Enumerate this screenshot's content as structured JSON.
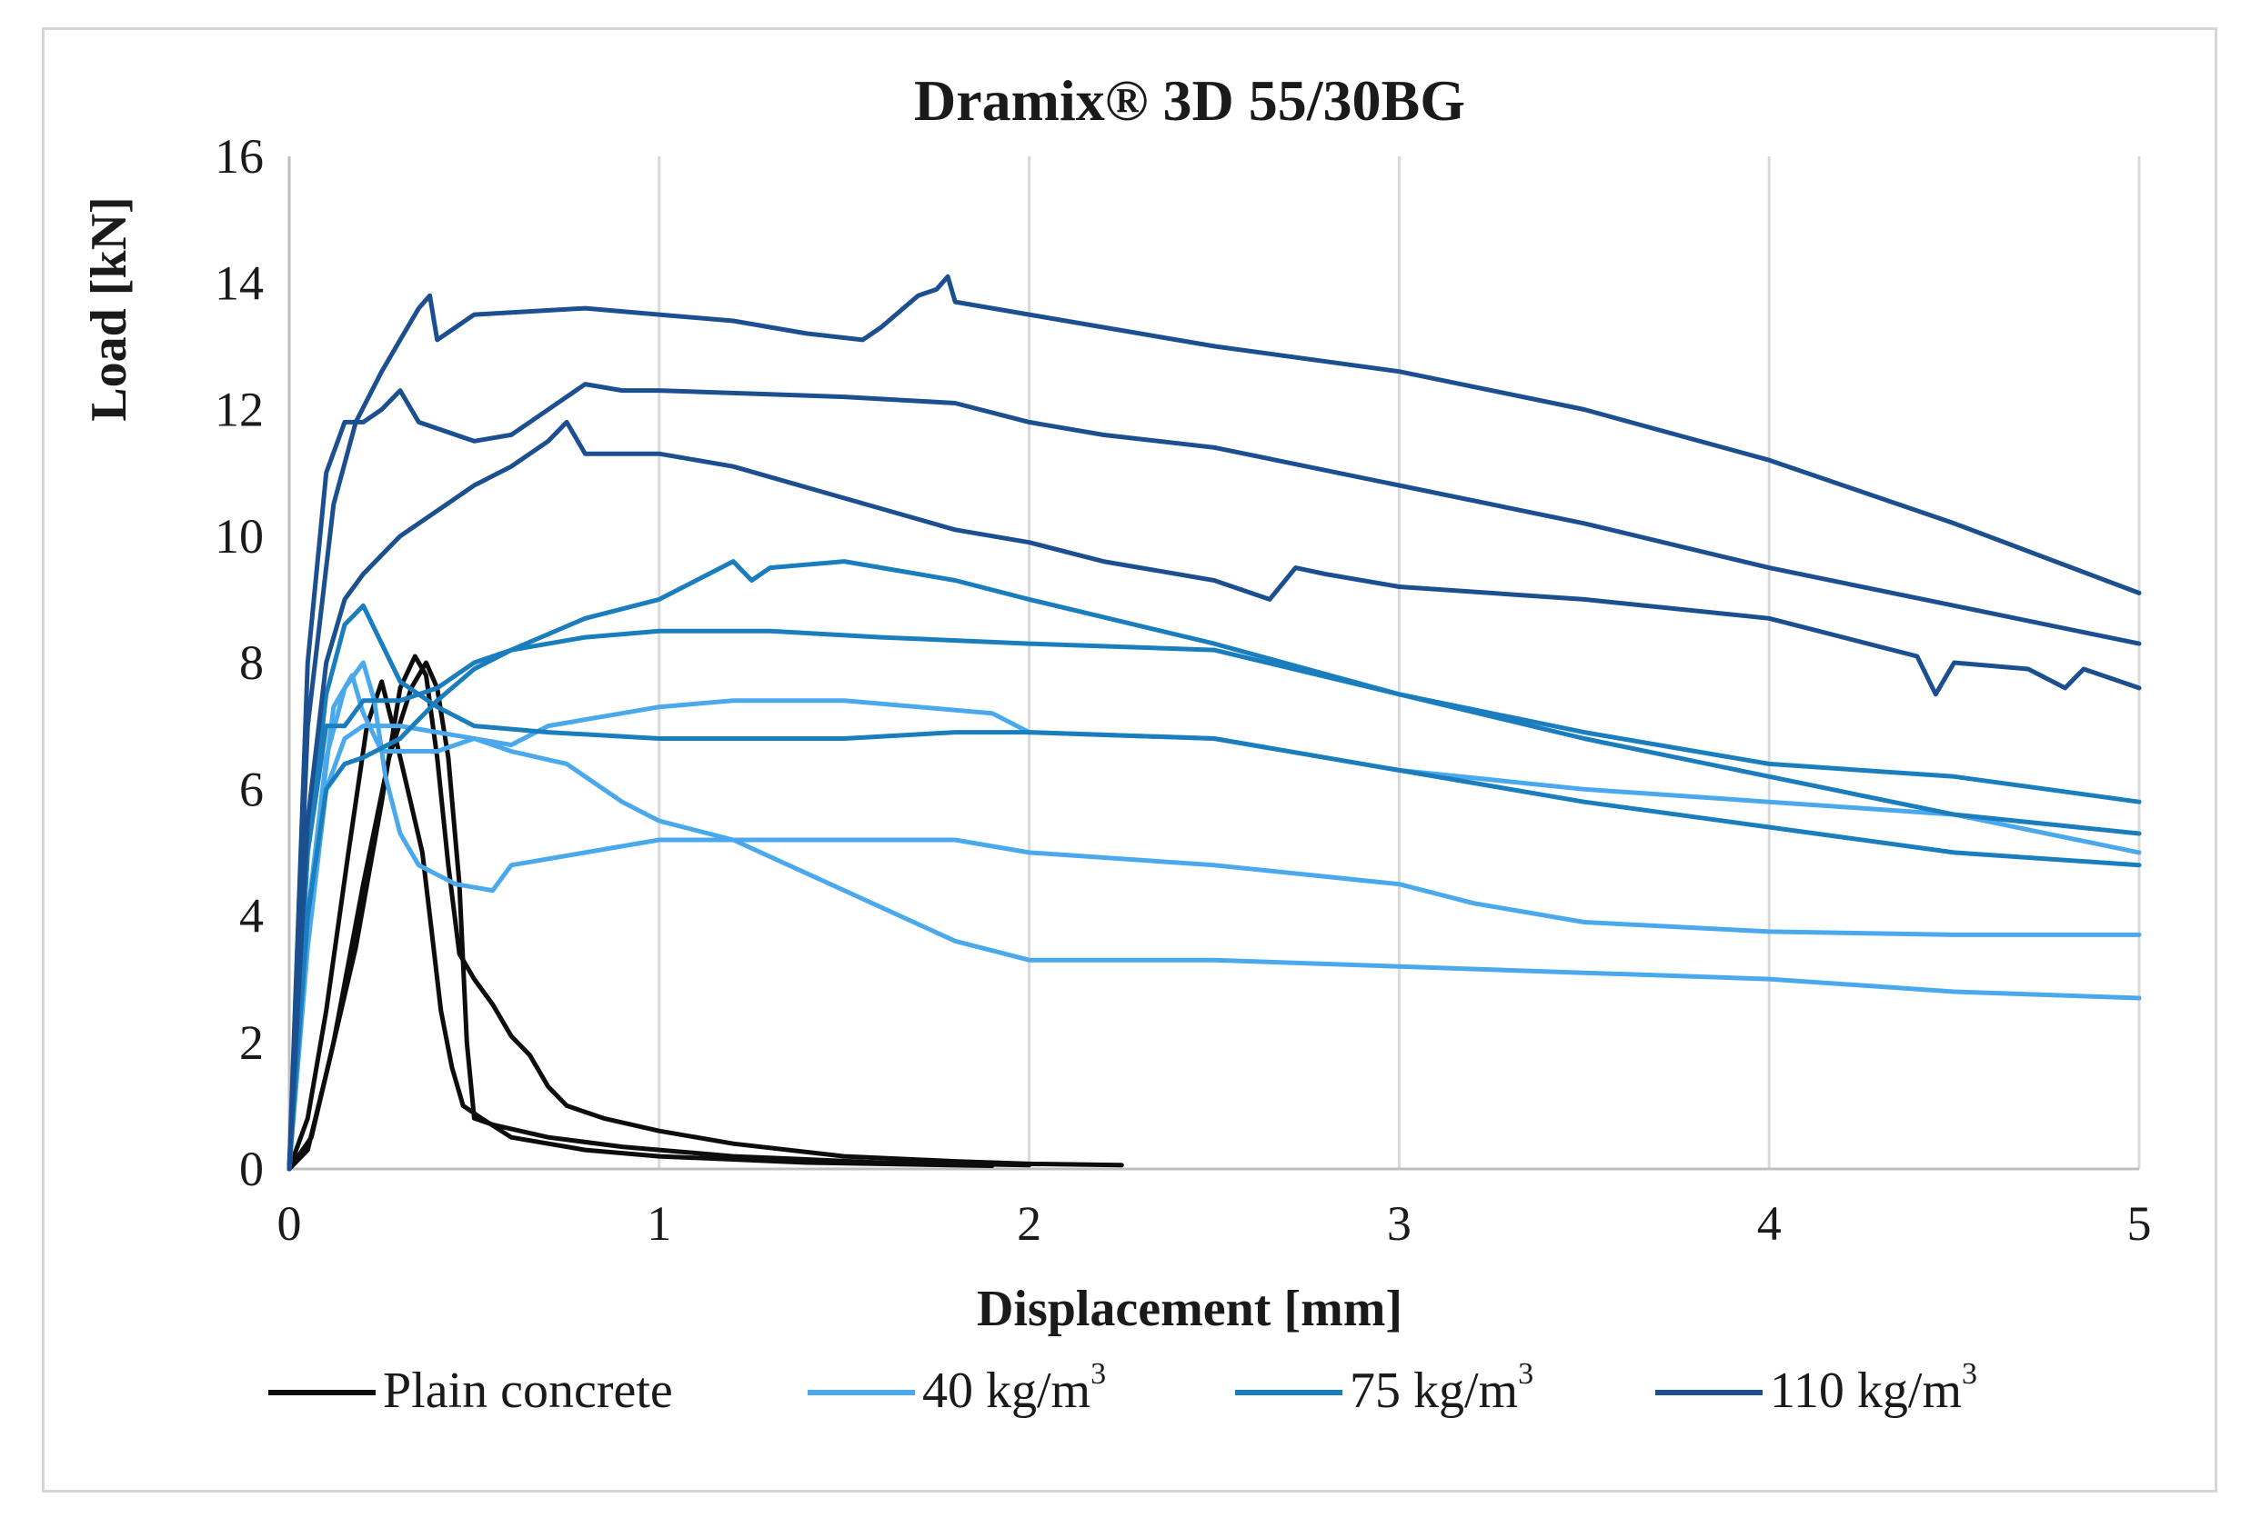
{
  "chart_data": {
    "type": "line",
    "title": "Dramix® 3D 55/30BG",
    "xlabel": "Displacement [mm]",
    "ylabel": "Load [kN]",
    "xlim": [
      0,
      5
    ],
    "ylim": [
      0,
      16
    ],
    "xticks": [
      "0",
      "1",
      "2",
      "3",
      "4",
      "5"
    ],
    "yticks": [
      "0",
      "2",
      "4",
      "6",
      "8",
      "10",
      "12",
      "14",
      "16"
    ],
    "grid": "vertical",
    "legend_position": "bottom",
    "legend": [
      {
        "label": "Plain concrete",
        "unit_sup": "",
        "color": "#0d0d0d"
      },
      {
        "label": "40 kg/m",
        "unit_sup": "3",
        "color": "#4aa8ec"
      },
      {
        "label": "75 kg/m",
        "unit_sup": "3",
        "color": "#1a7dbd"
      },
      {
        "label": "110 kg/m",
        "unit_sup": "3",
        "color": "#1b4f8f"
      }
    ],
    "series": [
      {
        "name": "Plain concrete",
        "color": "#0d0d0d",
        "points": [
          [
            0,
            0
          ],
          [
            0.05,
            0.3
          ],
          [
            0.1,
            1.5
          ],
          [
            0.18,
            3.5
          ],
          [
            0.25,
            5.8
          ],
          [
            0.3,
            7.6
          ],
          [
            0.34,
            8.1
          ],
          [
            0.37,
            7.8
          ],
          [
            0.4,
            6.5
          ],
          [
            0.43,
            4.8
          ],
          [
            0.46,
            3.4
          ],
          [
            0.5,
            3.0
          ],
          [
            0.55,
            2.6
          ],
          [
            0.6,
            2.1
          ],
          [
            0.65,
            1.8
          ],
          [
            0.7,
            1.3
          ],
          [
            0.75,
            1.0
          ],
          [
            0.85,
            0.8
          ],
          [
            1.0,
            0.6
          ],
          [
            1.2,
            0.4
          ],
          [
            1.5,
            0.2
          ],
          [
            1.8,
            0.12
          ],
          [
            2.0,
            0.08
          ],
          [
            2.25,
            0.06
          ]
        ]
      },
      {
        "name": "Plain concrete",
        "color": "#0d0d0d",
        "points": [
          [
            0,
            0
          ],
          [
            0.05,
            0.8
          ],
          [
            0.1,
            2.5
          ],
          [
            0.16,
            5.0
          ],
          [
            0.21,
            7.0
          ],
          [
            0.25,
            7.7
          ],
          [
            0.28,
            7.0
          ],
          [
            0.32,
            6.0
          ],
          [
            0.36,
            5.0
          ],
          [
            0.39,
            3.5
          ],
          [
            0.41,
            2.5
          ],
          [
            0.44,
            1.6
          ],
          [
            0.47,
            1.0
          ],
          [
            0.52,
            0.8
          ],
          [
            0.6,
            0.5
          ],
          [
            0.8,
            0.3
          ],
          [
            1.0,
            0.2
          ],
          [
            1.4,
            0.1
          ],
          [
            1.9,
            0.05
          ]
        ]
      },
      {
        "name": "Plain concrete",
        "color": "#0d0d0d",
        "points": [
          [
            0,
            0
          ],
          [
            0.06,
            0.5
          ],
          [
            0.12,
            2.0
          ],
          [
            0.2,
            4.5
          ],
          [
            0.27,
            6.5
          ],
          [
            0.33,
            7.6
          ],
          [
            0.37,
            8.0
          ],
          [
            0.4,
            7.6
          ],
          [
            0.43,
            6.5
          ],
          [
            0.46,
            4.5
          ],
          [
            0.48,
            2.0
          ],
          [
            0.5,
            0.8
          ],
          [
            0.55,
            0.7
          ],
          [
            0.7,
            0.5
          ],
          [
            0.9,
            0.35
          ],
          [
            1.2,
            0.2
          ],
          [
            1.6,
            0.1
          ],
          [
            2.0,
            0.06
          ]
        ]
      },
      {
        "name": "40 kg/m3",
        "color": "#4aa8ec",
        "points": [
          [
            0,
            0
          ],
          [
            0.05,
            4.0
          ],
          [
            0.1,
            6.5
          ],
          [
            0.15,
            7.6
          ],
          [
            0.2,
            8.0
          ],
          [
            0.23,
            7.4
          ],
          [
            0.26,
            6.2
          ],
          [
            0.3,
            5.3
          ],
          [
            0.35,
            4.8
          ],
          [
            0.45,
            4.5
          ],
          [
            0.55,
            4.4
          ],
          [
            0.6,
            4.8
          ],
          [
            0.8,
            5.0
          ],
          [
            1.0,
            5.2
          ],
          [
            1.3,
            5.2
          ],
          [
            1.8,
            5.2
          ],
          [
            2.0,
            5.0
          ],
          [
            2.5,
            4.8
          ],
          [
            3.0,
            4.5
          ],
          [
            3.2,
            4.2
          ],
          [
            3.5,
            3.9
          ],
          [
            4.0,
            3.75
          ],
          [
            4.5,
            3.7
          ],
          [
            5.0,
            3.7
          ]
        ]
      },
      {
        "name": "40 kg/m3",
        "color": "#4aa8ec",
        "points": [
          [
            0,
            0
          ],
          [
            0.05,
            3.5
          ],
          [
            0.1,
            6.0
          ],
          [
            0.15,
            6.8
          ],
          [
            0.2,
            7.0
          ],
          [
            0.3,
            7.0
          ],
          [
            0.4,
            6.9
          ],
          [
            0.5,
            6.8
          ],
          [
            0.6,
            6.7
          ],
          [
            0.7,
            7.0
          ],
          [
            0.9,
            7.2
          ],
          [
            1.0,
            7.3
          ],
          [
            1.2,
            7.4
          ],
          [
            1.5,
            7.4
          ],
          [
            1.9,
            7.2
          ],
          [
            2.0,
            6.9
          ],
          [
            2.5,
            6.8
          ],
          [
            3.0,
            6.3
          ],
          [
            3.5,
            6.0
          ],
          [
            4.0,
            5.8
          ],
          [
            4.5,
            5.6
          ],
          [
            5.0,
            5.0
          ]
        ]
      },
      {
        "name": "40 kg/m3",
        "color": "#4aa8ec",
        "points": [
          [
            0,
            0
          ],
          [
            0.05,
            4.0
          ],
          [
            0.12,
            7.3
          ],
          [
            0.17,
            7.8
          ],
          [
            0.2,
            7.2
          ],
          [
            0.25,
            6.6
          ],
          [
            0.3,
            6.6
          ],
          [
            0.4,
            6.6
          ],
          [
            0.5,
            6.8
          ],
          [
            0.6,
            6.6
          ],
          [
            0.75,
            6.4
          ],
          [
            0.9,
            5.8
          ],
          [
            1.0,
            5.5
          ],
          [
            1.2,
            5.2
          ],
          [
            1.5,
            4.4
          ],
          [
            1.8,
            3.6
          ],
          [
            2.0,
            3.3
          ],
          [
            2.5,
            3.3
          ],
          [
            3.0,
            3.2
          ],
          [
            3.5,
            3.1
          ],
          [
            4.0,
            3.0
          ],
          [
            4.5,
            2.8
          ],
          [
            5.0,
            2.7
          ]
        ]
      },
      {
        "name": "75 kg/m3",
        "color": "#1a7dbd",
        "points": [
          [
            0,
            0
          ],
          [
            0.05,
            5.0
          ],
          [
            0.1,
            7.5
          ],
          [
            0.15,
            8.6
          ],
          [
            0.2,
            8.9
          ],
          [
            0.25,
            8.3
          ],
          [
            0.3,
            7.7
          ],
          [
            0.4,
            7.3
          ],
          [
            0.5,
            7.0
          ],
          [
            0.7,
            6.9
          ],
          [
            1.0,
            6.8
          ],
          [
            1.5,
            6.8
          ],
          [
            1.8,
            6.9
          ],
          [
            2.0,
            6.9
          ],
          [
            2.5,
            6.8
          ],
          [
            3.0,
            6.3
          ],
          [
            3.5,
            5.8
          ],
          [
            4.0,
            5.4
          ],
          [
            4.5,
            5.0
          ],
          [
            5.0,
            4.8
          ]
        ]
      },
      {
        "name": "75 kg/m3",
        "color": "#1a7dbd",
        "points": [
          [
            0,
            0
          ],
          [
            0.05,
            4.0
          ],
          [
            0.1,
            6.0
          ],
          [
            0.15,
            6.4
          ],
          [
            0.2,
            6.5
          ],
          [
            0.3,
            6.8
          ],
          [
            0.4,
            7.4
          ],
          [
            0.5,
            7.9
          ],
          [
            0.6,
            8.2
          ],
          [
            0.8,
            8.4
          ],
          [
            1.0,
            8.5
          ],
          [
            1.3,
            8.5
          ],
          [
            1.6,
            8.4
          ],
          [
            2.0,
            8.3
          ],
          [
            2.5,
            8.2
          ],
          [
            3.0,
            7.5
          ],
          [
            3.5,
            6.9
          ],
          [
            4.0,
            6.4
          ],
          [
            4.5,
            6.2
          ],
          [
            5.0,
            5.8
          ]
        ]
      },
      {
        "name": "75 kg/m3",
        "color": "#1a7dbd",
        "points": [
          [
            0,
            0
          ],
          [
            0.05,
            5.0
          ],
          [
            0.1,
            7.0
          ],
          [
            0.15,
            7.0
          ],
          [
            0.2,
            7.4
          ],
          [
            0.3,
            7.4
          ],
          [
            0.4,
            7.6
          ],
          [
            0.5,
            8.0
          ],
          [
            0.6,
            8.2
          ],
          [
            0.8,
            8.7
          ],
          [
            1.0,
            9.0
          ],
          [
            1.2,
            9.6
          ],
          [
            1.25,
            9.3
          ],
          [
            1.3,
            9.5
          ],
          [
            1.5,
            9.6
          ],
          [
            1.8,
            9.3
          ],
          [
            2.0,
            9.0
          ],
          [
            2.5,
            8.3
          ],
          [
            3.0,
            7.5
          ],
          [
            3.5,
            6.8
          ],
          [
            4.0,
            6.2
          ],
          [
            4.5,
            5.6
          ],
          [
            5.0,
            5.3
          ]
        ]
      },
      {
        "name": "110 kg/m3",
        "color": "#1b4f8f",
        "points": [
          [
            0,
            0
          ],
          [
            0.05,
            8.0
          ],
          [
            0.1,
            11.0
          ],
          [
            0.15,
            11.8
          ],
          [
            0.2,
            11.8
          ],
          [
            0.25,
            12.0
          ],
          [
            0.3,
            12.3
          ],
          [
            0.35,
            11.8
          ],
          [
            0.5,
            11.5
          ],
          [
            0.6,
            11.6
          ],
          [
            0.7,
            12.0
          ],
          [
            0.8,
            12.4
          ],
          [
            0.9,
            12.3
          ],
          [
            1.0,
            12.3
          ],
          [
            1.5,
            12.2
          ],
          [
            1.8,
            12.1
          ],
          [
            2.0,
            11.8
          ],
          [
            2.2,
            11.6
          ],
          [
            2.5,
            11.4
          ],
          [
            3.0,
            10.8
          ],
          [
            3.5,
            10.2
          ],
          [
            4.0,
            9.5
          ],
          [
            4.5,
            8.9
          ],
          [
            5.0,
            8.3
          ]
        ]
      },
      {
        "name": "110 kg/m3",
        "color": "#1b4f8f",
        "points": [
          [
            0,
            0
          ],
          [
            0.05,
            7.0
          ],
          [
            0.12,
            10.5
          ],
          [
            0.18,
            11.8
          ],
          [
            0.25,
            12.6
          ],
          [
            0.3,
            13.1
          ],
          [
            0.35,
            13.6
          ],
          [
            0.38,
            13.8
          ],
          [
            0.4,
            13.1
          ],
          [
            0.45,
            13.3
          ],
          [
            0.5,
            13.5
          ],
          [
            0.8,
            13.6
          ],
          [
            1.0,
            13.5
          ],
          [
            1.2,
            13.4
          ],
          [
            1.4,
            13.2
          ],
          [
            1.55,
            13.1
          ],
          [
            1.6,
            13.3
          ],
          [
            1.7,
            13.8
          ],
          [
            1.75,
            13.9
          ],
          [
            1.78,
            14.1
          ],
          [
            1.8,
            13.7
          ],
          [
            2.0,
            13.5
          ],
          [
            2.5,
            13.0
          ],
          [
            3.0,
            12.6
          ],
          [
            3.5,
            12.0
          ],
          [
            4.0,
            11.2
          ],
          [
            4.5,
            10.2
          ],
          [
            5.0,
            9.1
          ]
        ]
      },
      {
        "name": "110 kg/m3",
        "color": "#1b4f8f",
        "points": [
          [
            0,
            0
          ],
          [
            0.05,
            5.5
          ],
          [
            0.1,
            8.0
          ],
          [
            0.15,
            9.0
          ],
          [
            0.2,
            9.4
          ],
          [
            0.3,
            10.0
          ],
          [
            0.4,
            10.4
          ],
          [
            0.5,
            10.8
          ],
          [
            0.6,
            11.1
          ],
          [
            0.7,
            11.5
          ],
          [
            0.75,
            11.8
          ],
          [
            0.8,
            11.3
          ],
          [
            1.0,
            11.3
          ],
          [
            1.2,
            11.1
          ],
          [
            1.5,
            10.6
          ],
          [
            1.8,
            10.1
          ],
          [
            2.0,
            9.9
          ],
          [
            2.2,
            9.6
          ],
          [
            2.5,
            9.3
          ],
          [
            2.65,
            9.0
          ],
          [
            2.72,
            9.5
          ],
          [
            2.8,
            9.4
          ],
          [
            3.0,
            9.2
          ],
          [
            3.5,
            9.0
          ],
          [
            4.0,
            8.7
          ],
          [
            4.4,
            8.1
          ],
          [
            4.45,
            7.5
          ],
          [
            4.5,
            8.0
          ],
          [
            4.7,
            7.9
          ],
          [
            4.8,
            7.6
          ],
          [
            4.85,
            7.9
          ],
          [
            5.0,
            7.6
          ]
        ]
      }
    ]
  }
}
